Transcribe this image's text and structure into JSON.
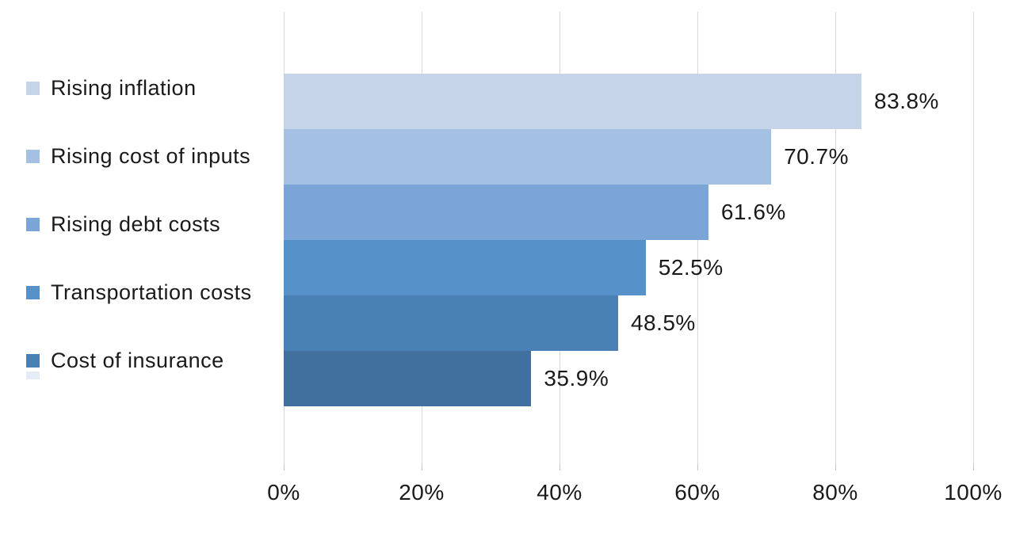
{
  "chart_data": {
    "type": "bar",
    "orientation": "horizontal",
    "title": "",
    "xlabel": "",
    "ylabel": "",
    "x_axis": {
      "range": [
        0,
        100
      ],
      "unit": "%",
      "tick_labels": [
        "0%",
        "20%",
        "40%",
        "60%",
        "80%",
        "100%"
      ],
      "grid": true
    },
    "series": [
      {
        "name": "Rising inflation",
        "value": 83.8,
        "data_label": "83.8%",
        "color": "#C6D4EA"
      },
      {
        "name": "Rising cost of inputs",
        "value": 70.7,
        "data_label": "70.7%",
        "color": "#A4C0E2"
      },
      {
        "name": "Rising debt costs",
        "value": 61.6,
        "data_label": "61.6%",
        "color": "#7BA5D7"
      },
      {
        "name": "Transportation costs",
        "value": 52.5,
        "data_label": "52.5%",
        "color": "#5691CA"
      },
      {
        "name": "Cost of insurance",
        "value": 48.5,
        "data_label": "48.5%",
        "color": "#4A81B4"
      },
      {
        "name": "",
        "value": 35.9,
        "data_label": "35.9%",
        "color": "#41709F"
      }
    ],
    "legend": {
      "position": "left",
      "items": [
        {
          "label": "Rising inflation",
          "color": "#C6D4EA"
        },
        {
          "label": "Rising cost of inputs",
          "color": "#A4C0E2"
        },
        {
          "label": "Rising debt costs",
          "color": "#7BA5D7"
        },
        {
          "label": "Transportation costs",
          "color": "#5691CA"
        },
        {
          "label": "Cost of insurance",
          "color": "#4A81B4"
        }
      ]
    },
    "colors": {
      "gridline": "#D9D9D9",
      "text": "#1A1A1A",
      "background": "#FFFFFF"
    }
  }
}
